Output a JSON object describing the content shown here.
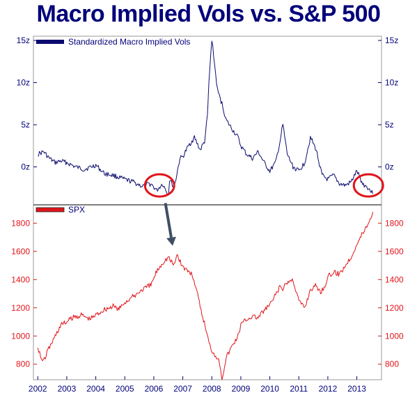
{
  "title": "Macro Implied Vols vs. S&P 500",
  "colors": {
    "vol": "#0a0a6e",
    "spx": "#e0141a",
    "axis_blue": "#00007a",
    "circle": "#e0141a",
    "arrow": "#3f4f63"
  },
  "chart_data": [
    {
      "type": "line",
      "panel": "top",
      "legend": "Standardized Macro Implied Vols",
      "legend_position": "top-left",
      "ylim": [
        -4.5,
        15.5
      ],
      "y_ticks": [
        0,
        5,
        10,
        15
      ],
      "y_tick_labels": [
        "0z",
        "5z",
        "10z",
        "15z"
      ],
      "grid": false,
      "series": [
        {
          "name": "Standardized Macro Implied Vols",
          "x": [
            2002.0,
            2002.2,
            2002.4,
            2002.6,
            2002.8,
            2003.0,
            2003.3,
            2003.6,
            2004.0,
            2004.3,
            2004.6,
            2005.0,
            2005.3,
            2005.6,
            2005.9,
            2006.1,
            2006.3,
            2006.5,
            2006.55,
            2006.7,
            2006.9,
            2007.0,
            2007.2,
            2007.4,
            2007.6,
            2007.75,
            2007.85,
            2007.9,
            2008.0,
            2008.1,
            2008.2,
            2008.35,
            2008.5,
            2008.7,
            2008.9,
            2009.0,
            2009.2,
            2009.4,
            2009.6,
            2009.8,
            2010.0,
            2010.2,
            2010.35,
            2010.45,
            2010.6,
            2010.8,
            2011.0,
            2011.2,
            2011.4,
            2011.6,
            2011.8,
            2012.0,
            2012.2,
            2012.4,
            2012.6,
            2012.8,
            2013.0,
            2013.2,
            2013.4,
            2013.55
          ],
          "values": [
            1.5,
            1.8,
            1.0,
            0.5,
            0.7,
            0.5,
            0.0,
            -0.3,
            0.2,
            -0.8,
            -1.0,
            -1.5,
            -1.8,
            -2.3,
            -2.0,
            -2.8,
            -2.0,
            -3.3,
            -1.5,
            -2.5,
            1.0,
            1.2,
            2.5,
            3.5,
            2.0,
            3.0,
            6.0,
            10.0,
            15.2,
            12.0,
            9.0,
            7.5,
            5.5,
            4.5,
            3.5,
            2.5,
            1.5,
            1.0,
            1.8,
            0.5,
            -0.5,
            0.5,
            3.0,
            5.0,
            1.5,
            0.0,
            -0.5,
            0.5,
            3.5,
            2.0,
            -1.0,
            -1.5,
            -1.0,
            -2.0,
            -2.2,
            -1.8,
            -0.5,
            -2.0,
            -2.5,
            -3.2
          ]
        }
      ]
    },
    {
      "type": "line",
      "panel": "bottom",
      "legend": "SPX",
      "legend_position": "top-left",
      "ylim": [
        690,
        1930
      ],
      "y_ticks": [
        800,
        1000,
        1200,
        1400,
        1600,
        1800
      ],
      "y_tick_labels": [
        "800",
        "1000",
        "1200",
        "1400",
        "1600",
        "1800"
      ],
      "x_ticks": [
        2002,
        2003,
        2004,
        2005,
        2006,
        2007,
        2008,
        2009,
        2010,
        2011,
        2012,
        2013
      ],
      "x_tick_labels": [
        "2002",
        "2003",
        "2004",
        "2005",
        "2006",
        "2007",
        "2008",
        "2009",
        "2010",
        "2011",
        "2012",
        "2013"
      ],
      "xlim": [
        2001.85,
        2013.85
      ],
      "grid": false,
      "series": [
        {
          "name": "SPX",
          "x": [
            2002.0,
            2002.1,
            2002.2,
            2002.35,
            2002.5,
            2002.6,
            2002.8,
            2003.0,
            2003.2,
            2003.5,
            2003.8,
            2004.0,
            2004.3,
            2004.6,
            2004.8,
            2005.0,
            2005.3,
            2005.6,
            2005.9,
            2006.1,
            2006.3,
            2006.5,
            2006.7,
            2006.8,
            2007.0,
            2007.2,
            2007.35,
            2007.45,
            2007.6,
            2007.8,
            2007.9,
            2008.0,
            2008.1,
            2008.2,
            2008.3,
            2008.35,
            2008.5,
            2008.7,
            2008.9,
            2009.0,
            2009.2,
            2009.4,
            2009.6,
            2009.8,
            2010.0,
            2010.2,
            2010.35,
            2010.45,
            2010.6,
            2010.8,
            2011.0,
            2011.2,
            2011.4,
            2011.6,
            2011.75,
            2011.9,
            2012.0,
            2012.2,
            2012.4,
            2012.6,
            2012.8,
            2012.9,
            2013.0,
            2013.2,
            2013.4,
            2013.55
          ],
          "values": [
            930,
            850,
            820,
            900,
            960,
            1000,
            1080,
            1100,
            1130,
            1150,
            1120,
            1150,
            1190,
            1210,
            1190,
            1240,
            1280,
            1330,
            1360,
            1460,
            1520,
            1560,
            1500,
            1580,
            1490,
            1460,
            1420,
            1350,
            1200,
            1050,
            950,
            900,
            870,
            850,
            780,
            700,
            850,
            930,
            1000,
            1080,
            1120,
            1140,
            1130,
            1180,
            1220,
            1290,
            1350,
            1330,
            1380,
            1400,
            1250,
            1200,
            1330,
            1360,
            1310,
            1360,
            1420,
            1450,
            1440,
            1500,
            1560,
            1610,
            1650,
            1730,
            1800,
            1880
          ]
        }
      ]
    }
  ],
  "annotations": [
    {
      "type": "circle",
      "panel": "top",
      "x": 2006.2,
      "y": -2.2
    },
    {
      "type": "circle",
      "panel": "top",
      "x": 2013.4,
      "y": -2.2
    },
    {
      "type": "arrow",
      "from": [
        2006.4,
        -4.3
      ],
      "to": [
        2006.65,
        1640
      ]
    }
  ]
}
